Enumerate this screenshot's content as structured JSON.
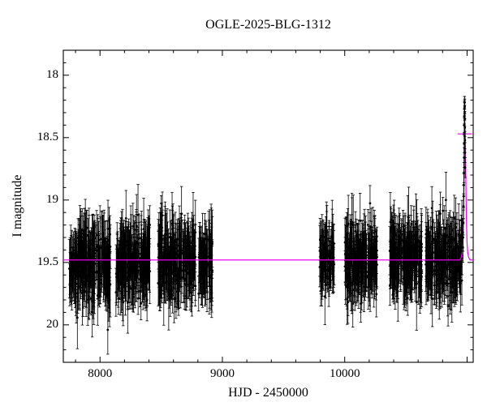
{
  "chart_data": {
    "type": "scatter",
    "title": "OGLE-2025-BLG-1312",
    "xlabel": "HJD - 2450000",
    "ylabel": "I magnitude",
    "xlim": [
      7700,
      11050
    ],
    "ylim": [
      20.3,
      17.8
    ],
    "y_axis_inverted": true,
    "grid": false,
    "x_tick_values": [
      8000,
      9000,
      10000
    ],
    "x_tick_labels": [
      "8000",
      "9000",
      "10000"
    ],
    "x_minor_step": 200,
    "y_tick_values": [
      18,
      18.5,
      19,
      19.5,
      20
    ],
    "y_tick_labels": [
      "18",
      "18.5",
      "19",
      "19.5",
      "20"
    ],
    "y_minor_step": 0.1,
    "point_color": "#000000",
    "model_color": "#ee00ee",
    "baseline_mag": 19.48,
    "seasons": [
      {
        "x": [
          7745,
          8085
        ],
        "n": 260,
        "mag": 19.52,
        "sigma": 0.13,
        "err": 0.18
      },
      {
        "x": [
          8128,
          8408
        ],
        "n": 240,
        "mag": 19.5,
        "sigma": 0.13,
        "err": 0.17
      },
      {
        "x": [
          8475,
          8780
        ],
        "n": 260,
        "mag": 19.48,
        "sigma": 0.14,
        "err": 0.17
      },
      {
        "x": [
          8806,
          8920
        ],
        "n": 70,
        "mag": 19.5,
        "sigma": 0.12,
        "err": 0.18
      },
      {
        "x": [
          9795,
          9915
        ],
        "n": 90,
        "mag": 19.45,
        "sigma": 0.13,
        "err": 0.16
      },
      {
        "x": [
          10000,
          10265
        ],
        "n": 230,
        "mag": 19.48,
        "sigma": 0.13,
        "err": 0.16
      },
      {
        "x": [
          10365,
          10630
        ],
        "n": 230,
        "mag": 19.47,
        "sigma": 0.13,
        "err": 0.16
      },
      {
        "x": [
          10660,
          10960
        ],
        "n": 240,
        "mag": 19.47,
        "sigma": 0.13,
        "err": 0.16
      }
    ],
    "event_points": [
      [
        10966,
        19.38,
        0.12
      ],
      [
        10968,
        19.3,
        0.11
      ],
      [
        10969.5,
        19.18,
        0.1
      ],
      [
        10971,
        19.05,
        0.1
      ],
      [
        10972,
        18.97,
        0.09
      ],
      [
        10973,
        18.88,
        0.09
      ],
      [
        10974,
        18.78,
        0.08
      ],
      [
        10975,
        18.66,
        0.08
      ],
      [
        10975.8,
        18.55,
        0.07
      ],
      [
        10976.5,
        18.47,
        0.07
      ],
      [
        10977,
        18.4,
        0.06
      ],
      [
        10977.6,
        18.33,
        0.06
      ],
      [
        10978.2,
        18.27,
        0.06
      ],
      [
        10978.8,
        18.22,
        0.05
      ],
      [
        10979.3,
        18.26,
        0.06
      ],
      [
        10979.8,
        18.22,
        0.05
      ],
      [
        10980.3,
        18.3,
        0.06
      ],
      [
        10980.8,
        18.25,
        0.06
      ],
      [
        10981.4,
        18.35,
        0.06
      ],
      [
        10982,
        18.42,
        0.07
      ],
      [
        10982.8,
        18.52,
        0.07
      ],
      [
        10983.6,
        18.62,
        0.08
      ],
      [
        10984.4,
        18.74,
        0.08
      ]
    ],
    "model_curve": [
      [
        7700,
        19.48
      ],
      [
        10940,
        19.48
      ],
      [
        10952,
        19.46
      ],
      [
        10960,
        19.42
      ],
      [
        10966,
        19.33
      ],
      [
        10970,
        19.18
      ],
      [
        10973,
        19.0
      ],
      [
        10975.5,
        18.82
      ],
      [
        10977.5,
        18.65
      ],
      [
        10979,
        18.52
      ],
      [
        10980.5,
        18.44
      ],
      [
        10982,
        18.4
      ],
      [
        10984,
        18.44
      ],
      [
        10985.5,
        18.52
      ],
      [
        10987,
        18.65
      ],
      [
        10989.5,
        18.82
      ],
      [
        10992,
        19.0
      ],
      [
        10995,
        19.18
      ],
      [
        10999,
        19.33
      ],
      [
        11005,
        19.42
      ],
      [
        11013,
        19.46
      ],
      [
        11025,
        19.48
      ],
      [
        11050,
        19.48
      ]
    ],
    "peak_marker": {
      "x": 10981.5,
      "mag": 18.47
    }
  }
}
